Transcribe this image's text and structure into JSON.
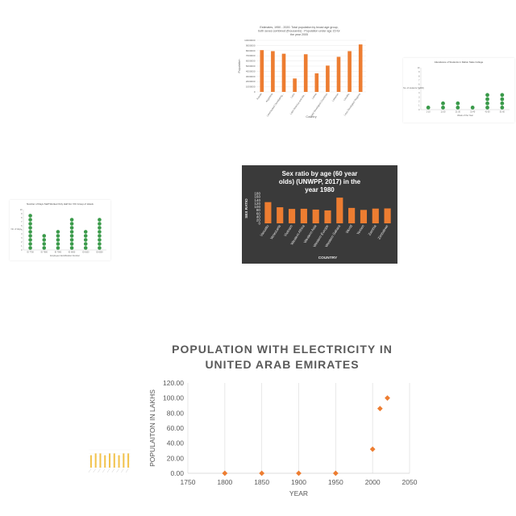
{
  "charts": {
    "population_bar": {
      "title": "Estimates, 1950 - 2020: Total population by broad age group, both sexes combined (thousands) - Population under age 15 for the year 2005",
      "xlabel": "Country",
      "ylabel": "Population",
      "color": "#ed7d31"
    },
    "attendance_dots": {
      "title": "Attendance of Students in Dalton State College",
      "xlabel": "Week of the Year",
      "ylabel": "No. of students (*1000)",
      "color": "#3a9a4a"
    },
    "sex_ratio_bar": {
      "title": "Sex ratio by age (60 year olds) (UNWPP, 2017) in the year 1980",
      "xlabel": "COUNTRY",
      "ylabel": "SEX RATIO",
      "color": "#ed7d31",
      "background": "#3a3a3a"
    },
    "staff_dots": {
      "title": "Number of Days Staff Worked Only Half For VIC Group of Hotels",
      "xlabel": "Employee Identification Number",
      "ylabel": "No. of days",
      "color": "#3a9a4a"
    },
    "yellow_bar": {
      "title": "",
      "color": "#f2c24b"
    },
    "electricity_scatter": {
      "title_line1": "POPULATION WITH ELECTRICITY IN",
      "title_line2": "UNITED ARAB EMIRATES",
      "xlabel": "YEAR",
      "ylabel": "POPULAITON IN LAKHS",
      "color": "#ed7d31"
    }
  },
  "chart_data": [
    {
      "type": "bar",
      "id": "population_bar",
      "categories": [
        "Kuwait",
        "Argentina",
        "Land-locked Developing...",
        "Laos",
        "Latin America and the...",
        "Latvia",
        "Least Developed Countries",
        "Lebanon",
        "Lesotho",
        "Less Developed Regions"
      ],
      "values": [
        8100000,
        7900000,
        7400000,
        2600000,
        7300000,
        3600000,
        5100000,
        6800000,
        7900000,
        9200000
      ],
      "ylim": [
        0,
        10000000
      ],
      "yticks": [
        0,
        1000000,
        2000000,
        3000000,
        4000000,
        5000000,
        6000000,
        7000000,
        8000000,
        9000000,
        10000000
      ],
      "grid": true
    },
    {
      "type": "scatter",
      "id": "attendance_dots",
      "categories": [
        "1-10",
        "11-20",
        "21-30",
        "31-40",
        "41-50",
        "51-60"
      ],
      "values": [
        1,
        2,
        2,
        1,
        4,
        4
      ],
      "ylim": [
        0,
        10
      ],
      "yticks": [
        0,
        1,
        2,
        3,
        4,
        5,
        6,
        7,
        8,
        9,
        10
      ],
      "grid": false
    },
    {
      "type": "bar",
      "id": "sex_ratio_bar",
      "categories": [
        "Vanuatu",
        "Venezuela",
        "Vietnam",
        "Western Africa",
        "Western Asia",
        "Western Europe",
        "Western Sahara",
        "World",
        "Yemen",
        "Zambia",
        "Zimbabwe"
      ],
      "values": [
        128,
        97,
        87,
        88,
        83,
        78,
        155,
        93,
        81,
        89,
        90
      ],
      "ylim": [
        0,
        180
      ],
      "yticks": [
        0,
        20,
        40,
        60,
        80,
        100,
        120,
        140,
        160,
        180
      ],
      "grid": false
    },
    {
      "type": "scatter",
      "id": "staff_dots",
      "categories": [
        "ID 7700",
        "ID 7800",
        "ID 7900",
        "ID 8000",
        "ID 8100",
        "ID 8200"
      ],
      "values": [
        9,
        4,
        5,
        8,
        5,
        8
      ],
      "ylim": [
        0,
        10
      ],
      "yticks": [
        0,
        1,
        2,
        3,
        4,
        5,
        6,
        7,
        8,
        9,
        10
      ],
      "grid": false
    },
    {
      "type": "bar",
      "id": "yellow_bar",
      "categories": [
        "",
        "",
        "",
        "",
        "",
        "",
        "",
        "",
        ""
      ],
      "values": [
        7,
        8,
        8,
        7,
        8,
        8,
        7,
        8,
        8
      ],
      "ylim": [
        0,
        10
      ],
      "grid": false
    },
    {
      "type": "scatter",
      "id": "electricity_scatter",
      "series": [
        {
          "x": [
            1800,
            1850,
            1900,
            1950,
            2000,
            2010,
            2020
          ],
          "y": [
            0,
            0,
            0,
            0,
            32,
            86,
            100
          ]
        }
      ],
      "xlim": [
        1750,
        2050
      ],
      "ylim": [
        0,
        120
      ],
      "xticks": [
        1750,
        1800,
        1850,
        1900,
        1950,
        2000,
        2050
      ],
      "yticks": [
        0,
        20,
        40,
        60,
        80,
        100,
        120
      ],
      "yticklabels": [
        "0.00",
        "20.00",
        "40.00",
        "60.00",
        "80.00",
        "100.00",
        "120.00"
      ],
      "grid": true,
      "gridlines": "vertical"
    }
  ]
}
